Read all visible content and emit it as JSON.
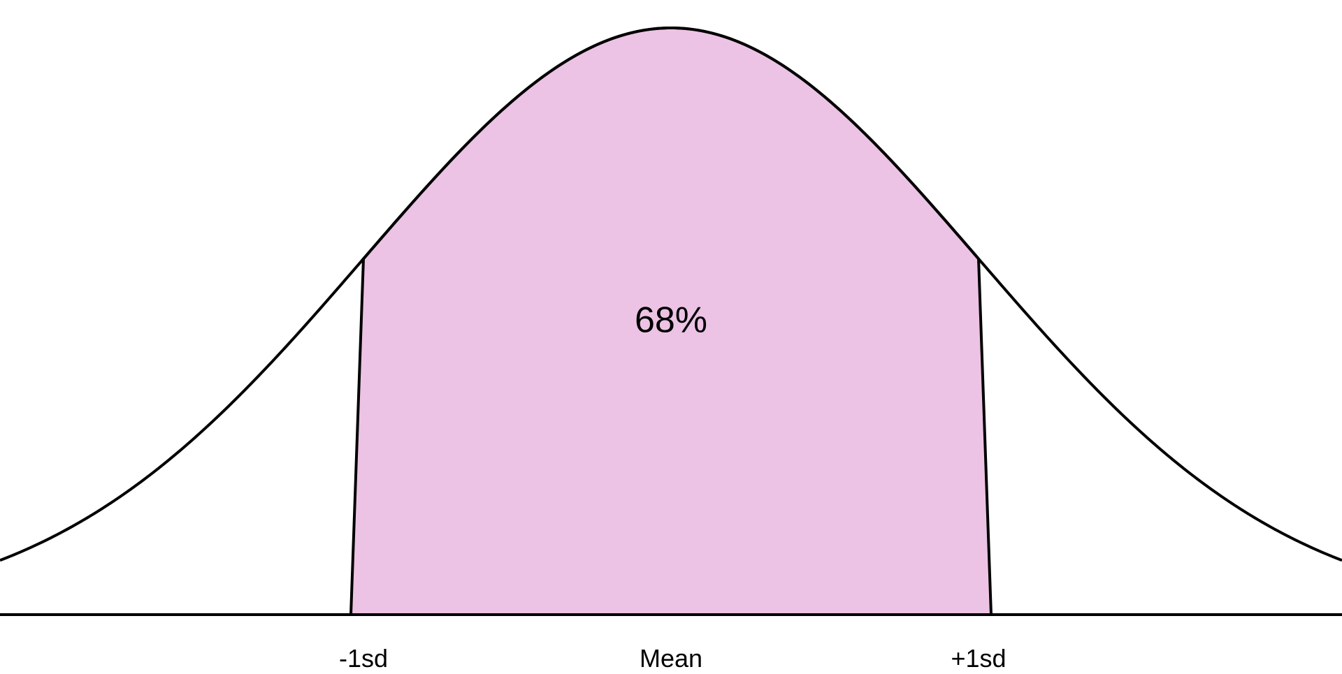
{
  "chart_data": {
    "type": "area",
    "title": "",
    "xlabel": "",
    "ylabel": "",
    "xlim": [
      -4,
      4
    ],
    "curve": "normal",
    "mean": 0,
    "sd": 1,
    "shaded_region": {
      "from": -1,
      "to": 1,
      "label": "68%",
      "color": "#ecc3e4"
    },
    "tick_labels": [
      {
        "x": -1,
        "label": "-1sd"
      },
      {
        "x": 0,
        "label": "Mean"
      },
      {
        "x": 1,
        "label": "+1sd"
      }
    ],
    "grid": false,
    "legend": "none"
  }
}
